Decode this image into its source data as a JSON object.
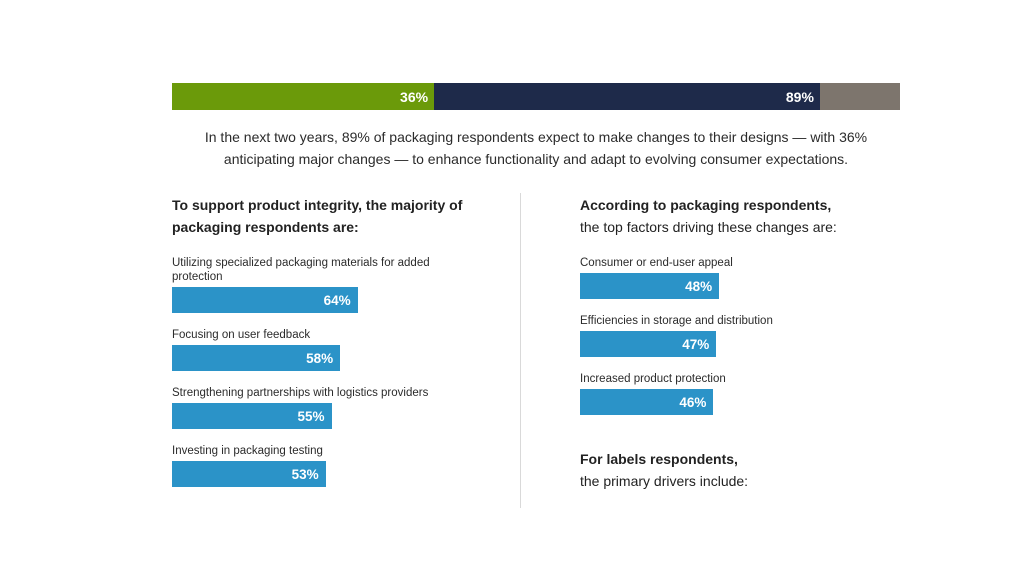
{
  "top_bar": {
    "segments": [
      {
        "label": "36%",
        "value": 36,
        "color": "#6b9a0a"
      },
      {
        "label": "89%",
        "value": 89,
        "color": "#1e2a4a"
      },
      {
        "label": "",
        "value": 100,
        "color": "#7d756d"
      }
    ]
  },
  "intro": {
    "line1": "In the next two years, 89% of packaging respondents expect to make changes to their designs — with 36%",
    "line2": "anticipating major changes — to enhance functionality and adapt to evolving consumer expectations."
  },
  "left": {
    "heading_line1": "To support product integrity, the majority of",
    "heading_line2": "packaging respondents are:"
  },
  "right": {
    "heading_line1": "According to packaging respondents,",
    "heading_line2": "the top factors driving these changes are:",
    "footer_line1": "For labels respondents,",
    "footer_line2": "the primary drivers include:"
  },
  "chart_data": [
    {
      "type": "bar",
      "orientation": "horizontal",
      "categories": [
        "Utilizing specialized packaging materials for added protection",
        "Focusing on user feedback",
        "Strengthening partnerships with logistics providers",
        "Investing in packaging testing"
      ],
      "values": [
        64,
        58,
        55,
        53
      ],
      "value_labels": [
        "64%",
        "58%",
        "55%",
        "53%"
      ],
      "color": "#2b93c8"
    },
    {
      "type": "bar",
      "orientation": "horizontal",
      "categories": [
        "Consumer or end-user appeal",
        "Efficiencies in storage and distribution",
        "Increased product protection"
      ],
      "values": [
        48,
        47,
        46
      ],
      "value_labels": [
        "48%",
        "47%",
        "46%"
      ],
      "color": "#2b93c8"
    }
  ]
}
